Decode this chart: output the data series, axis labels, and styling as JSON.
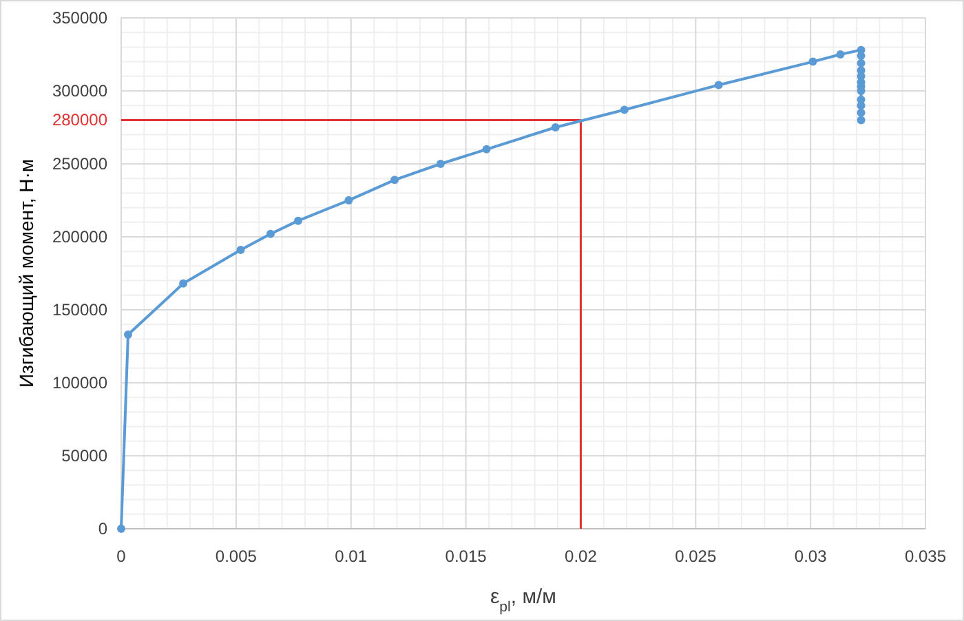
{
  "chart_data": {
    "type": "line",
    "xlabel": "ε$_{pl}$, м/м",
    "ylabel": "Изгибающий момент, Н·м",
    "series": [
      {
        "color": "#5b9bd5",
        "x": [
          0,
          0.0003,
          0.0027,
          0.0052,
          0.0065,
          0.0077,
          0.0099,
          0.0119,
          0.0139,
          0.0159,
          0.0189,
          0.0219,
          0.026,
          0.0301,
          0.0313,
          0.0322,
          0.0322,
          0.0322,
          0.0322,
          0.0322,
          0.0322,
          0.0322,
          0.0322,
          0.0322,
          0.0322,
          0.0322,
          0.0322
        ],
        "values": [
          0,
          133000,
          168000,
          191000,
          202000,
          211000,
          225000,
          239000,
          250000,
          260000,
          275000,
          287000,
          304000,
          320000,
          325000,
          328000,
          324000,
          319000,
          314000,
          310000,
          306000,
          303000,
          300000,
          294000,
          290000,
          285000,
          280000
        ]
      }
    ],
    "xlim": [
      0,
      0.035
    ],
    "xticks": [
      0,
      0.005,
      0.01,
      0.015,
      0.02,
      0.025,
      0.03,
      0.035
    ],
    "ylim": [
      0,
      350000
    ],
    "yticks": [
      0,
      50000,
      100000,
      150000,
      200000,
      250000,
      300000,
      350000
    ],
    "ref_lines": [
      {
        "axis": "y",
        "value": 280000,
        "label": "280000",
        "color": "#e03030"
      },
      {
        "axis": "x",
        "value": 0.02,
        "color": "#e03030"
      }
    ],
    "grid": true,
    "marker": "circle",
    "line_style": "solid"
  }
}
